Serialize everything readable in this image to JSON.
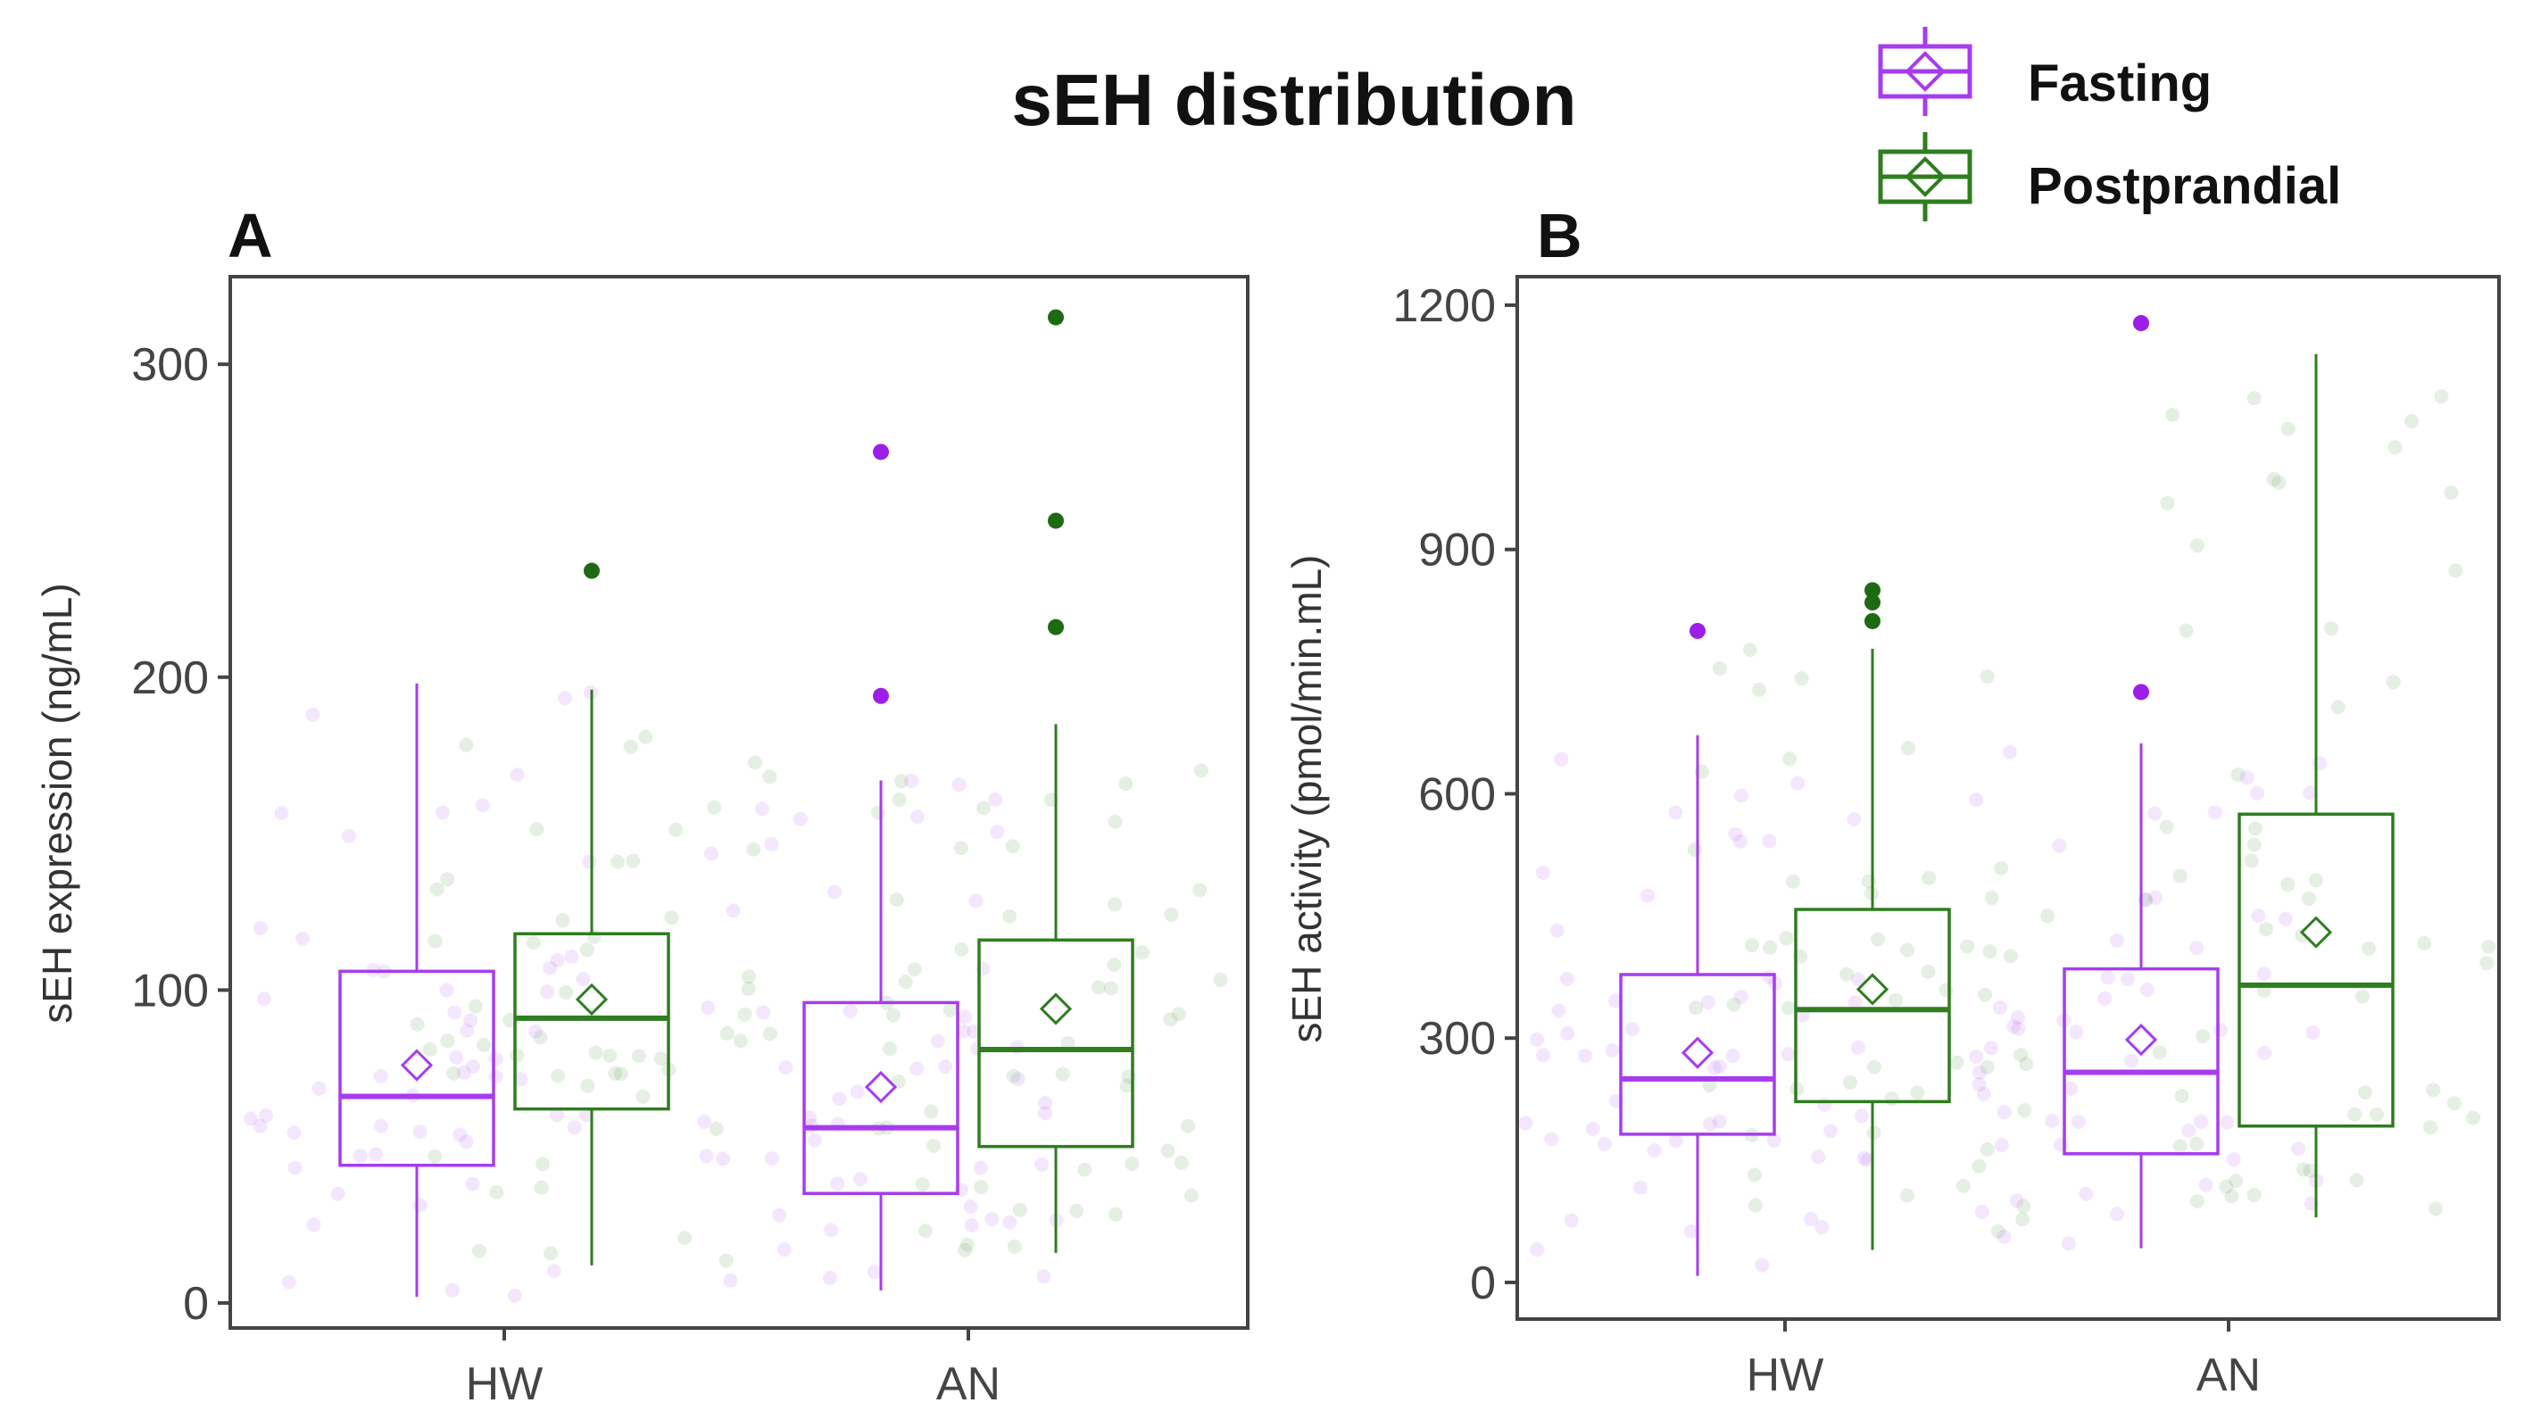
{
  "figure": {
    "title": "sEH distribution"
  },
  "legend": [
    {
      "label": "Fasting",
      "color": "#a63cf0"
    },
    {
      "label": "Postprandial",
      "color": "#2e7d1e"
    }
  ],
  "chart_data": [
    {
      "type": "boxplot",
      "panel": "A",
      "title": "",
      "xlabel": "",
      "ylabel": "sEH expression (ng/mL)",
      "categories": [
        "HW",
        "AN"
      ],
      "ylim": [
        -8,
        328
      ],
      "yticks": [
        0,
        100,
        200,
        300
      ],
      "series": [
        {
          "name": "Fasting",
          "color": "#a63cf0",
          "boxes": [
            {
              "category": "HW",
              "whisker_low": 2,
              "q1": 44,
              "median": 66,
              "q3": 106,
              "whisker_high": 198,
              "mean": 76,
              "outliers": []
            },
            {
              "category": "AN",
              "whisker_low": 4,
              "q1": 35,
              "median": 56,
              "q3": 96,
              "whisker_high": 167,
              "mean": 69,
              "outliers": [
                194,
                272
              ]
            }
          ]
        },
        {
          "name": "Postprandial",
          "color": "#2e7d1e",
          "boxes": [
            {
              "category": "HW",
              "whisker_low": 12,
              "q1": 62,
              "median": 91,
              "q3": 118,
              "whisker_high": 196,
              "mean": 97,
              "outliers": [
                234
              ]
            },
            {
              "category": "AN",
              "whisker_low": 16,
              "q1": 50,
              "median": 81,
              "q3": 116,
              "whisker_high": 185,
              "mean": 94,
              "outliers": [
                216,
                250,
                315
              ]
            }
          ]
        }
      ]
    },
    {
      "type": "boxplot",
      "panel": "B",
      "title": "",
      "xlabel": "",
      "ylabel": "sEH activity (pmol/min.mL)",
      "categories": [
        "HW",
        "AN"
      ],
      "ylim": [
        -45,
        1235
      ],
      "yticks": [
        0,
        300,
        600,
        900,
        1200
      ],
      "series": [
        {
          "name": "Fasting",
          "color": "#a63cf0",
          "boxes": [
            {
              "category": "HW",
              "whisker_low": 8,
              "q1": 182,
              "median": 250,
              "q3": 378,
              "whisker_high": 672,
              "mean": 282,
              "outliers": [
                800
              ]
            },
            {
              "category": "AN",
              "whisker_low": 42,
              "q1": 158,
              "median": 258,
              "q3": 385,
              "whisker_high": 662,
              "mean": 298,
              "outliers": [
                725,
                1178
              ]
            }
          ]
        },
        {
          "name": "Postprandial",
          "color": "#2e7d1e",
          "boxes": [
            {
              "category": "HW",
              "whisker_low": 40,
              "q1": 222,
              "median": 335,
              "q3": 458,
              "whisker_high": 778,
              "mean": 360,
              "outliers": [
                812,
                835,
                850
              ]
            },
            {
              "category": "AN",
              "whisker_low": 80,
              "q1": 192,
              "median": 365,
              "q3": 575,
              "whisker_high": 1140,
              "mean": 430,
              "outliers": []
            }
          ]
        }
      ]
    }
  ]
}
